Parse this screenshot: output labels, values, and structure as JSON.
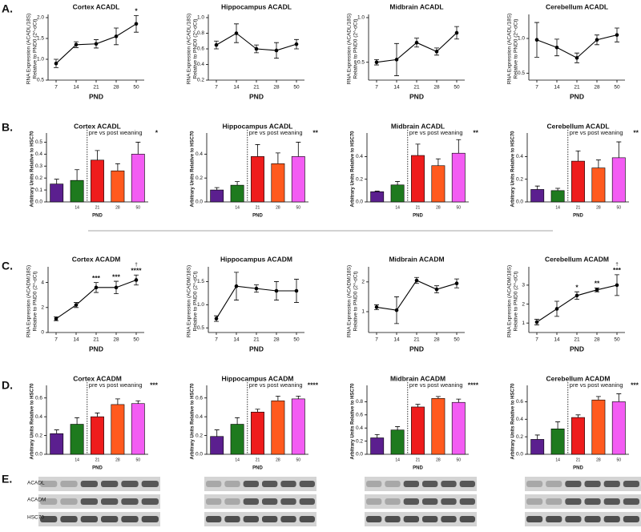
{
  "panel_letters": [
    "A.",
    "B.",
    "C.",
    "D.",
    "E."
  ],
  "blot_labels": [
    "ACADL",
    "ACADM",
    "HSC70"
  ],
  "chart_data": [
    {
      "type": "line",
      "title": "Cortex ACADL",
      "ylabel": [
        "RNA Expression (ACADL/18S)",
        "Relative to PND0 (2^-dCt)"
      ],
      "xlabel": "PND",
      "categories": [
        "7",
        "14",
        "21",
        "28",
        "50"
      ],
      "values": [
        0.9,
        1.35,
        1.37,
        1.55,
        1.85
      ],
      "errors": [
        0.1,
        0.07,
        0.1,
        0.2,
        0.2
      ],
      "annotations": [
        null,
        null,
        null,
        null,
        "*"
      ],
      "color": "#000000",
      "ylim": [
        0.5,
        2.0
      ],
      "yticks": [
        0.5,
        {
          "value": 1.0,
          "label": "1.0"
        },
        1.5,
        {
          "value": 2.0,
          "label": "2.0"
        }
      ]
    },
    {
      "type": "line",
      "title": "Hippocampus ACADL",
      "ylabel": [
        "RNA Expression (ACADL/18S)",
        "Relative to PND0 (2^-dCt)"
      ],
      "xlabel": "PND",
      "categories": [
        "7",
        "14",
        "21",
        "28",
        "50"
      ],
      "values": [
        0.65,
        0.8,
        0.6,
        0.58,
        0.66
      ],
      "errors": [
        0.05,
        0.12,
        0.05,
        0.1,
        0.06
      ],
      "color": "#000000",
      "ylim": [
        0.2,
        1.0
      ],
      "yticks": [
        0.2,
        0.4,
        0.6,
        0.8,
        {
          "value": 1.0,
          "label": "1.0"
        }
      ]
    },
    {
      "type": "line",
      "title": "Midbrain ACADL",
      "ylabel": [
        "RNA Expression (ACADL/18S)",
        "Relative to PND0 (2^-dCt)"
      ],
      "xlabel": "PND",
      "categories": [
        "7",
        "14",
        "21",
        "28",
        "50"
      ],
      "values": [
        0.5,
        0.53,
        0.72,
        0.62,
        0.83
      ],
      "errors": [
        0.03,
        0.18,
        0.05,
        0.04,
        0.07
      ],
      "color": "#000000",
      "ylim": [
        0.3,
        1.0
      ],
      "yticks": [
        0.5,
        {
          "value": 1.0,
          "label": "1.0"
        }
      ]
    },
    {
      "type": "line",
      "title": "Cerebellum ACADL",
      "ylabel": [
        "RNA Expression (ACADL/18S)",
        "Relative to PND0 (2^-dCt)"
      ],
      "xlabel": "PND",
      "categories": [
        "7",
        "14",
        "21",
        "28",
        "50"
      ],
      "values": [
        0.98,
        0.87,
        0.72,
        0.98,
        1.05
      ],
      "errors": [
        0.25,
        0.12,
        0.07,
        0.07,
        0.1
      ],
      "color": "#000000",
      "ylim": [
        0.4,
        1.3
      ],
      "yticks": [
        0.5,
        {
          "value": 1.0,
          "label": "1.0"
        }
      ]
    },
    {
      "type": "bar",
      "title": "Cortex ACADL",
      "ylabel": "Arbitrary Units Relative to HSC70",
      "xlabel": "PND",
      "categories": [
        null,
        "14",
        "21",
        "28",
        "50"
      ],
      "values": [
        0.15,
        0.18,
        0.35,
        0.26,
        0.4
      ],
      "errors": [
        0.04,
        0.09,
        0.08,
        0.06,
        0.1
      ],
      "colors": [
        "#5b1f8f",
        "#1e7a1e",
        "#ee1c1c",
        "#ff5a1e",
        "#f35cf3"
      ],
      "divider_label": "pre vs post weaning",
      "significance": "*",
      "ylim": [
        0,
        0.55
      ],
      "yticks": [
        {
          "value": 0,
          "label": "0.0"
        },
        0.1,
        0.2,
        0.3,
        0.4,
        0.5
      ]
    },
    {
      "type": "bar",
      "title": "Hippocampus ACADL",
      "ylabel": "Arbitrary Units Relative to HSC70",
      "xlabel": "PND",
      "categories": [
        null,
        "14",
        "21",
        "28",
        "50"
      ],
      "values": [
        0.1,
        0.14,
        0.38,
        0.32,
        0.38
      ],
      "errors": [
        0.02,
        0.03,
        0.1,
        0.09,
        0.12
      ],
      "colors": [
        "#5b1f8f",
        "#1e7a1e",
        "#ee1c1c",
        "#ff5a1e",
        "#f35cf3"
      ],
      "divider_label": "pre vs post weaning",
      "significance": "**",
      "ylim": [
        0,
        0.55
      ],
      "yticks": [
        {
          "value": 0,
          "label": "0.0"
        },
        0.2,
        0.4
      ]
    },
    {
      "type": "bar",
      "title": "Midbrain ACADL",
      "ylabel": "Arbitrary Units Relative to HSC70",
      "xlabel": "PND",
      "categories": [
        null,
        "14",
        "21",
        "28",
        "50"
      ],
      "values": [
        0.09,
        0.15,
        0.41,
        0.32,
        0.43
      ],
      "errors": [
        0.005,
        0.03,
        0.1,
        0.06,
        0.12
      ],
      "colors": [
        "#5b1f8f",
        "#1e7a1e",
        "#ee1c1c",
        "#ff5a1e",
        "#f35cf3"
      ],
      "divider_label": "pre vs post weaning",
      "significance": "**",
      "ylim": [
        0,
        0.58
      ],
      "yticks": [
        {
          "value": 0,
          "label": "0.0"
        },
        0.2,
        0.4
      ]
    },
    {
      "type": "bar",
      "title": "Cerebellum ACADL",
      "ylabel": "Arbitrary Units Relative to HSC70",
      "xlabel": "PND",
      "categories": [
        null,
        "14",
        "21",
        "28",
        "50"
      ],
      "values": [
        0.11,
        0.1,
        0.36,
        0.3,
        0.39
      ],
      "errors": [
        0.03,
        0.02,
        0.09,
        0.07,
        0.14
      ],
      "colors": [
        "#5b1f8f",
        "#1e7a1e",
        "#ee1c1c",
        "#ff5a1e",
        "#f35cf3"
      ],
      "divider_label": "pre vs post weaning",
      "significance": "**",
      "ylim": [
        0,
        0.58
      ],
      "yticks": [
        {
          "value": 0,
          "label": "0.0"
        },
        0.2,
        0.4
      ]
    },
    {
      "type": "line",
      "title": "Cortex ACADM",
      "ylabel": [
        "RNA Expression (ACADM/18S)",
        "Relative to PND0 (2^-dCt)"
      ],
      "xlabel": "PND",
      "categories": [
        "7",
        "14",
        "21",
        "28",
        "50"
      ],
      "values": [
        1.1,
        2.2,
        3.6,
        3.6,
        4.2
      ],
      "errors": [
        0.15,
        0.2,
        0.4,
        0.5,
        0.4
      ],
      "annotations": [
        null,
        null,
        "***",
        "***",
        "****"
      ],
      "markers": [
        null,
        null,
        null,
        null,
        "†"
      ],
      "color": "#000000",
      "ylim": [
        0,
        5
      ],
      "yticks": [
        0,
        2,
        4
      ]
    },
    {
      "type": "line",
      "title": "Hippocampus ACADM",
      "ylabel": [
        "RNA Expression (ACADM/18S)",
        "Relative to PND0 (2^-dCt)"
      ],
      "xlabel": "PND",
      "categories": [
        "7",
        "14",
        "21",
        "28",
        "50"
      ],
      "values": [
        0.7,
        1.4,
        1.35,
        1.3,
        1.3
      ],
      "errors": [
        0.06,
        0.3,
        0.08,
        0.2,
        0.25
      ],
      "color": "#000000",
      "ylim": [
        0.4,
        1.75
      ],
      "yticks": [
        0.5,
        {
          "value": 1.0,
          "label": "1.0"
        },
        1.5
      ]
    },
    {
      "type": "line",
      "title": "Midbrain ACADM",
      "ylabel": [
        "RNA Expression (ACADM/18S)",
        "Relative to PND0 (2^-dCt)"
      ],
      "xlabel": "PND",
      "categories": [
        "7",
        "14",
        "21",
        "28",
        "50"
      ],
      "values": [
        1.15,
        1.05,
        2.05,
        1.75,
        1.95
      ],
      "errors": [
        0.08,
        0.45,
        0.1,
        0.12,
        0.15
      ],
      "color": "#000000",
      "ylim": [
        0.3,
        2.4
      ],
      "yticks": [
        1,
        2
      ]
    },
    {
      "type": "line",
      "title": "Cerebellum ACADM",
      "ylabel": [
        "RNA Expression (ACADM/18S)",
        "Relative to PND0 (2^-dCt)"
      ],
      "xlabel": "PND",
      "categories": [
        "7",
        "14",
        "21",
        "28",
        "50"
      ],
      "values": [
        1.05,
        1.75,
        2.45,
        2.75,
        3.0
      ],
      "errors": [
        0.15,
        0.4,
        0.2,
        0.1,
        0.55
      ],
      "annotations": [
        null,
        null,
        "*",
        "**",
        "***"
      ],
      "markers": [
        null,
        null,
        null,
        null,
        "†"
      ],
      "color": "#000000",
      "ylim": [
        0.5,
        3.8
      ],
      "yticks": [
        1,
        2,
        3
      ]
    },
    {
      "type": "bar",
      "title": "Cortex ACADM",
      "ylabel": "Arbitrary Units Relative to HSC70",
      "xlabel": "PND",
      "categories": [
        null,
        "14",
        "21",
        "28",
        "50"
      ],
      "values": [
        0.22,
        0.32,
        0.4,
        0.53,
        0.54
      ],
      "errors": [
        0.04,
        0.07,
        0.04,
        0.06,
        0.03
      ],
      "colors": [
        "#5b1f8f",
        "#1e7a1e",
        "#ee1c1c",
        "#ff5a1e",
        "#f35cf3"
      ],
      "divider_label": "pre vs post weaning",
      "significance": "***",
      "ylim": [
        0,
        0.7
      ],
      "yticks": [
        {
          "value": 0,
          "label": "0.0"
        },
        0.2,
        0.4,
        0.6
      ]
    },
    {
      "type": "bar",
      "title": "Hippocampus ACADM",
      "ylabel": "Arbitrary Units Relative to HSC70",
      "xlabel": "PND",
      "categories": [
        null,
        "14",
        "21",
        "28",
        "50"
      ],
      "values": [
        0.19,
        0.32,
        0.45,
        0.57,
        0.59
      ],
      "errors": [
        0.07,
        0.07,
        0.03,
        0.05,
        0.03
      ],
      "colors": [
        "#5b1f8f",
        "#1e7a1e",
        "#ee1c1c",
        "#ff5a1e",
        "#f35cf3"
      ],
      "divider_label": "pre vs post weaning",
      "significance": "****",
      "ylim": [
        0,
        0.7
      ],
      "yticks": [
        {
          "value": 0,
          "label": "0.0"
        },
        0.2,
        0.4,
        0.6
      ]
    },
    {
      "type": "bar",
      "title": "Midbrain ACADM",
      "ylabel": "Arbitrary Units Relative to HSC70",
      "xlabel": "PND",
      "categories": [
        null,
        "14",
        "21",
        "28",
        "50"
      ],
      "values": [
        0.25,
        0.37,
        0.72,
        0.85,
        0.79
      ],
      "errors": [
        0.05,
        0.05,
        0.04,
        0.03,
        0.05
      ],
      "colors": [
        "#5b1f8f",
        "#1e7a1e",
        "#ee1c1c",
        "#ff5a1e",
        "#f35cf3"
      ],
      "divider_label": "pre vs post weaning",
      "significance": "****",
      "ylim": [
        0,
        1.0
      ],
      "yticks": [
        {
          "value": 0,
          "label": "0.0"
        },
        0.2,
        0.4,
        0.6,
        0.8
      ]
    },
    {
      "type": "bar",
      "title": "Cerebellum ACADM",
      "ylabel": "Arbitrary Units Relative to HSC70",
      "xlabel": "PND",
      "categories": [
        null,
        "14",
        "21",
        "28",
        "50"
      ],
      "values": [
        0.17,
        0.29,
        0.42,
        0.62,
        0.6
      ],
      "errors": [
        0.05,
        0.08,
        0.03,
        0.04,
        0.09
      ],
      "colors": [
        "#5b1f8f",
        "#1e7a1e",
        "#ee1c1c",
        "#ff5a1e",
        "#f35cf3"
      ],
      "divider_label": "pre vs post weaning",
      "significance": "***",
      "ylim": [
        0,
        0.75
      ],
      "yticks": [
        {
          "value": 0,
          "label": "0.0"
        },
        0.2,
        0.4,
        0.6
      ]
    }
  ]
}
